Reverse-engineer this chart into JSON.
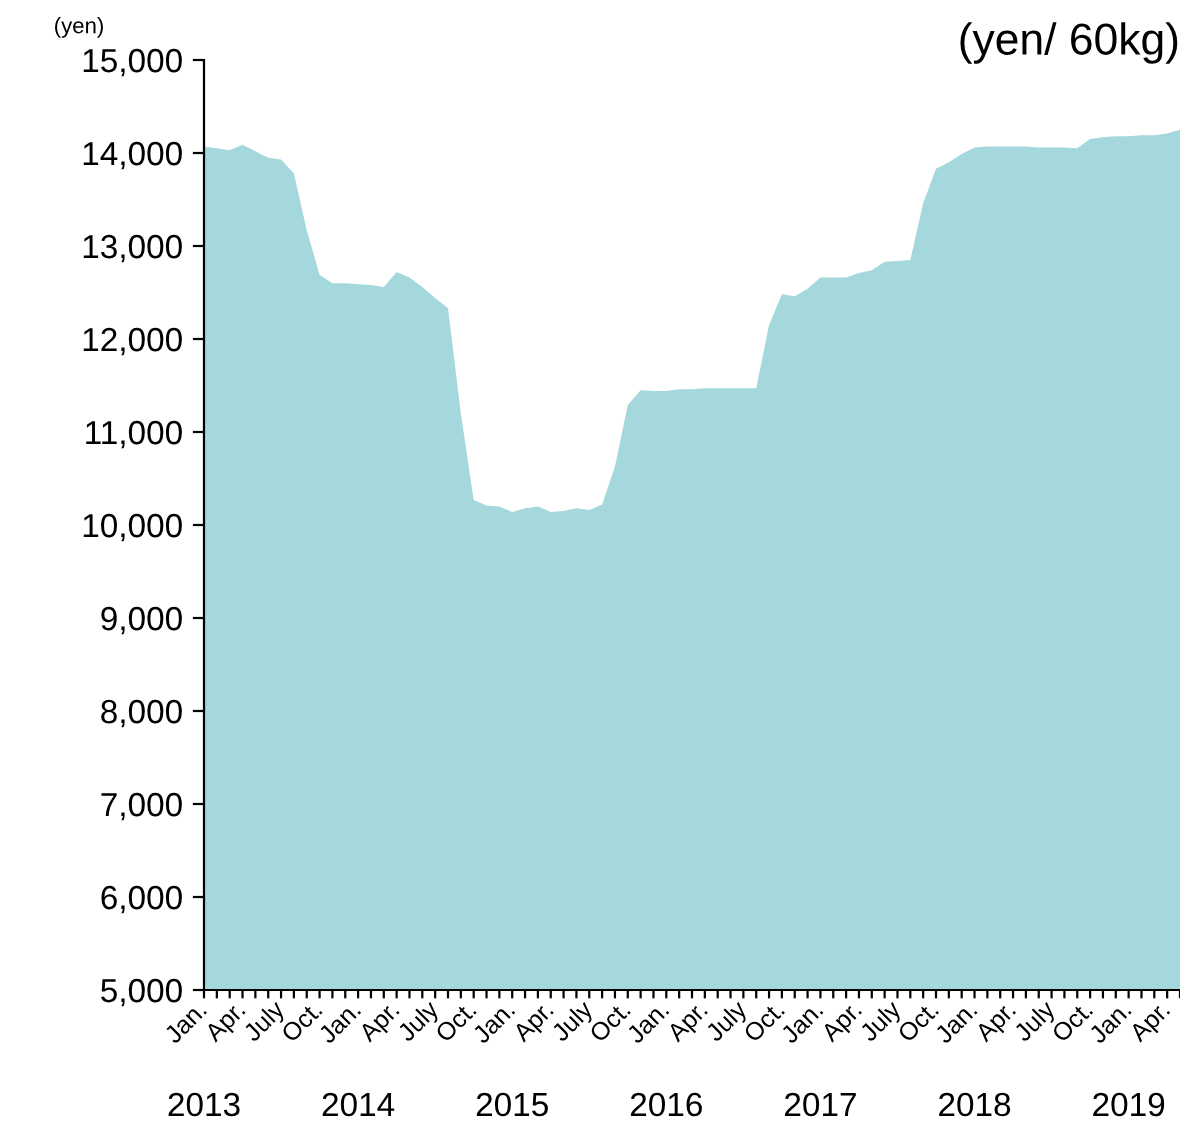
{
  "chart_data": {
    "type": "area",
    "title": "(yen/ 60kg)",
    "ylabel": "(yen)",
    "color": "#a4d8dc",
    "categories": [
      "Jan.",
      null,
      null,
      "Apr.",
      null,
      null,
      "July",
      null,
      null,
      "Oct.",
      null,
      null,
      "Jan.",
      null,
      null,
      "Apr.",
      null,
      null,
      "July",
      null,
      null,
      "Oct.",
      null,
      null,
      "Jan.",
      null,
      null,
      "Apr.",
      null,
      null,
      "July",
      null,
      null,
      "Oct.",
      null,
      null,
      "Jan.",
      null,
      null,
      "Apr.",
      null,
      null,
      "July",
      null,
      null,
      "Oct.",
      null,
      null,
      "Jan.",
      null,
      null,
      "Apr.",
      null,
      null,
      "July",
      null,
      null,
      "Oct.",
      null,
      null,
      "Jan.",
      null,
      null,
      "Apr.",
      null,
      null,
      "July",
      null,
      null,
      "Oct.",
      null,
      null,
      "Jan.",
      null,
      null,
      "Apr.",
      null
    ],
    "values": [
      14070,
      14050,
      14030,
      14090,
      14020,
      13950,
      13930,
      13780,
      13170,
      12690,
      12600,
      12600,
      12590,
      12580,
      12560,
      12720,
      12660,
      12560,
      12440,
      12330,
      11200,
      10270,
      10210,
      10200,
      10140,
      10180,
      10200,
      10140,
      10150,
      10180,
      10160,
      10220,
      10630,
      11290,
      11450,
      11440,
      11440,
      11460,
      11460,
      11470,
      11470,
      11470,
      11470,
      11470,
      12150,
      12480,
      12460,
      12540,
      12660,
      12660,
      12660,
      12710,
      12740,
      12830,
      12840,
      12850,
      13460,
      13830,
      13900,
      13990,
      14060,
      14070,
      14070,
      14070,
      14070,
      14060,
      14060,
      14060,
      14050,
      14150,
      14170,
      14180,
      14180,
      14190,
      14190,
      14210,
      14250
    ],
    "ylim": [
      5000,
      15000
    ],
    "yticks": [
      {
        "value": 5000,
        "label": "5,000"
      },
      {
        "value": 6000,
        "label": "6,000"
      },
      {
        "value": 7000,
        "label": "7,000"
      },
      {
        "value": 8000,
        "label": "8,000"
      },
      {
        "value": 9000,
        "label": "9,000"
      },
      {
        "value": 10000,
        "label": "10,000"
      },
      {
        "value": 11000,
        "label": "11,000"
      },
      {
        "value": 12000,
        "label": "12,000"
      },
      {
        "value": 13000,
        "label": "13,000"
      },
      {
        "value": 14000,
        "label": "14,000"
      },
      {
        "value": 15000,
        "label": "15,000"
      }
    ],
    "annotations": [
      "2013",
      "2014",
      "2015",
      "2016",
      "2017",
      "2018",
      "2019"
    ],
    "grid": false
  }
}
